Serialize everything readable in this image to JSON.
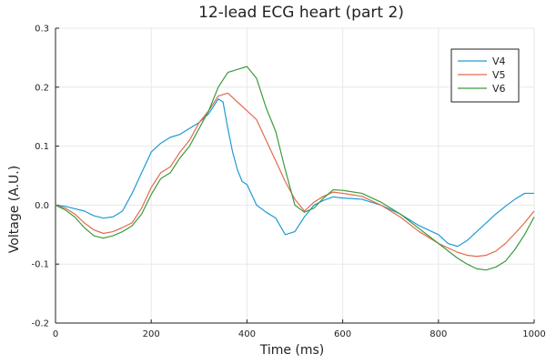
{
  "chart_data": {
    "type": "line",
    "title": "12-lead ECG heart (part 2)",
    "xlabel": "Time (ms)",
    "ylabel": "Voltage (A.U.)",
    "xlim": [
      0,
      1000
    ],
    "ylim": [
      -0.2,
      0.3
    ],
    "xticks": [
      "0",
      "200",
      "400",
      "600",
      "800",
      "1000"
    ],
    "yticks": [
      "-0.2",
      "-0.1",
      "0.0",
      "0.1",
      "0.2",
      "0.3"
    ],
    "xtick_values": [
      0,
      200,
      400,
      600,
      800,
      1000
    ],
    "ytick_values": [
      -0.2,
      -0.1,
      0.0,
      0.1,
      0.2,
      0.3
    ],
    "grid": true,
    "legend_position": "top-right",
    "series": [
      {
        "name": "V4",
        "color": "#1f9ad6",
        "x": [
          0,
          20,
          40,
          60,
          80,
          100,
          120,
          140,
          160,
          180,
          200,
          220,
          240,
          260,
          280,
          300,
          320,
          340,
          350,
          360,
          370,
          380,
          390,
          400,
          420,
          440,
          460,
          480,
          500,
          520,
          540,
          560,
          580,
          600,
          640,
          680,
          720,
          760,
          800,
          820,
          840,
          860,
          880,
          900,
          920,
          940,
          960,
          980,
          1000
        ],
        "y": [
          0.0,
          -0.002,
          -0.006,
          -0.01,
          -0.018,
          -0.022,
          -0.02,
          -0.01,
          0.02,
          0.055,
          0.09,
          0.105,
          0.115,
          0.12,
          0.13,
          0.14,
          0.155,
          0.18,
          0.175,
          0.13,
          0.09,
          0.06,
          0.04,
          0.035,
          0.0,
          -0.012,
          -0.022,
          -0.05,
          -0.045,
          -0.02,
          0.0,
          0.008,
          0.014,
          0.012,
          0.01,
          0.0,
          -0.015,
          -0.035,
          -0.05,
          -0.065,
          -0.07,
          -0.06,
          -0.045,
          -0.03,
          -0.015,
          -0.002,
          0.01,
          0.02,
          0.02
        ]
      },
      {
        "name": "V5",
        "color": "#e26a4e",
        "x": [
          0,
          20,
          40,
          60,
          80,
          100,
          120,
          140,
          160,
          180,
          200,
          220,
          240,
          260,
          280,
          300,
          320,
          340,
          360,
          380,
          400,
          420,
          440,
          460,
          480,
          500,
          520,
          540,
          560,
          580,
          600,
          640,
          680,
          720,
          760,
          800,
          840,
          860,
          880,
          900,
          920,
          940,
          960,
          980,
          1000
        ],
        "y": [
          0.0,
          -0.005,
          -0.015,
          -0.03,
          -0.042,
          -0.048,
          -0.045,
          -0.038,
          -0.03,
          -0.005,
          0.03,
          0.055,
          0.065,
          0.09,
          0.11,
          0.14,
          0.16,
          0.185,
          0.19,
          0.175,
          0.16,
          0.145,
          0.11,
          0.075,
          0.04,
          0.01,
          -0.01,
          0.005,
          0.015,
          0.022,
          0.02,
          0.015,
          0.0,
          -0.02,
          -0.045,
          -0.065,
          -0.08,
          -0.085,
          -0.087,
          -0.085,
          -0.078,
          -0.065,
          -0.048,
          -0.03,
          -0.01
        ]
      },
      {
        "name": "V6",
        "color": "#3d9a3d",
        "x": [
          0,
          20,
          40,
          60,
          80,
          100,
          120,
          140,
          160,
          180,
          200,
          220,
          240,
          260,
          280,
          300,
          320,
          340,
          360,
          380,
          400,
          420,
          440,
          460,
          480,
          500,
          520,
          540,
          560,
          580,
          600,
          640,
          680,
          720,
          760,
          800,
          840,
          860,
          880,
          900,
          920,
          940,
          960,
          980,
          1000
        ],
        "y": [
          0.0,
          -0.008,
          -0.02,
          -0.038,
          -0.052,
          -0.056,
          -0.052,
          -0.045,
          -0.035,
          -0.015,
          0.018,
          0.045,
          0.055,
          0.08,
          0.1,
          0.13,
          0.16,
          0.2,
          0.225,
          0.23,
          0.235,
          0.215,
          0.165,
          0.125,
          0.06,
          0.0,
          -0.012,
          -0.005,
          0.012,
          0.026,
          0.025,
          0.02,
          0.005,
          -0.015,
          -0.04,
          -0.065,
          -0.09,
          -0.1,
          -0.108,
          -0.11,
          -0.105,
          -0.095,
          -0.075,
          -0.05,
          -0.02
        ]
      }
    ]
  }
}
